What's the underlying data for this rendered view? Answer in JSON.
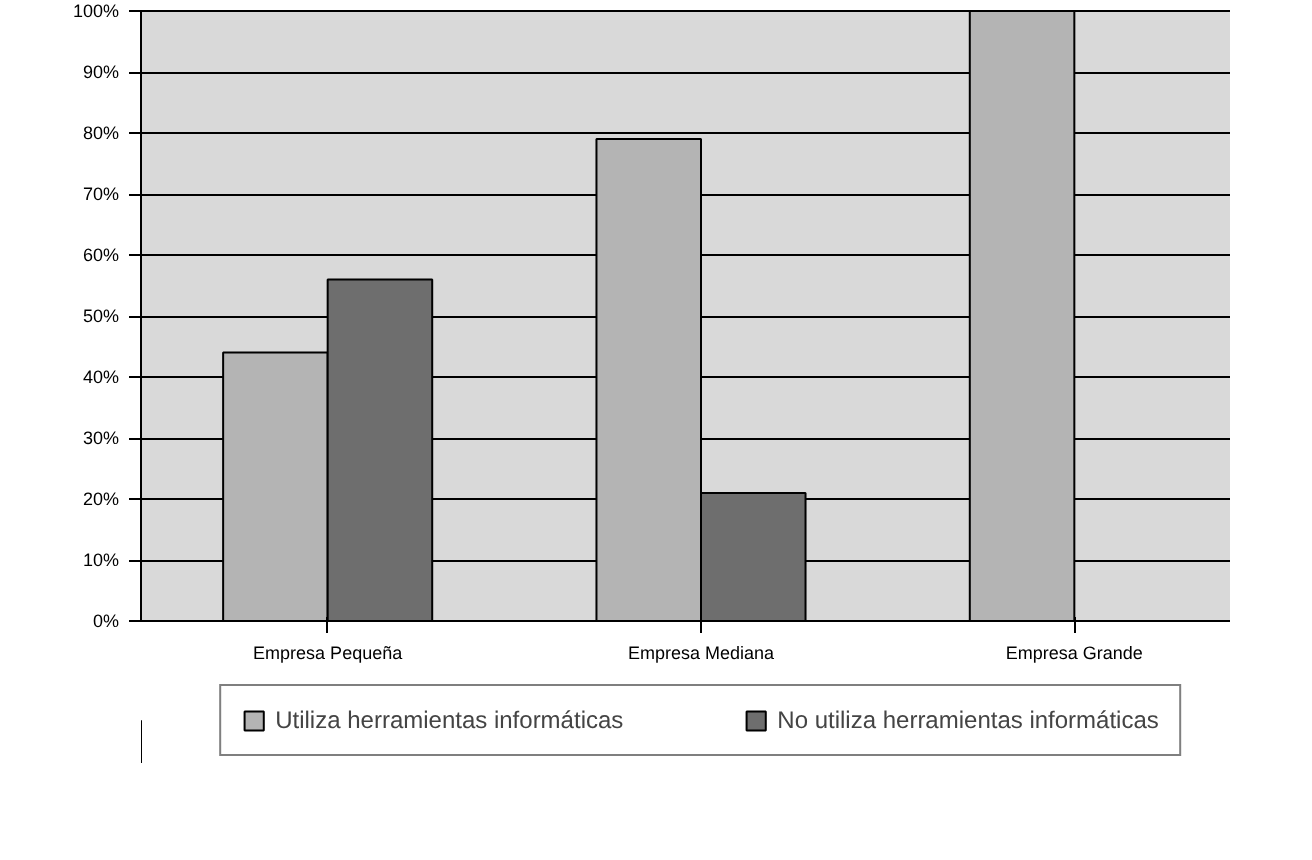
{
  "chart_data": {
    "type": "bar",
    "categories": [
      "Empresa Pequeña",
      "Empresa Mediana",
      "Empresa Grande"
    ],
    "series": [
      {
        "name": "Utiliza herramientas informáticas",
        "color": "#b4b4b4",
        "values": [
          44,
          79,
          100
        ]
      },
      {
        "name": "No utiliza herramientas informáticas",
        "color": "#6e6e6e",
        "values": [
          56,
          21,
          0
        ]
      }
    ],
    "ylim": [
      0,
      100
    ],
    "yticks": [
      {
        "value": 0,
        "label": "0%"
      },
      {
        "value": 10,
        "label": "10%"
      },
      {
        "value": 20,
        "label": "20%"
      },
      {
        "value": 30,
        "label": "30%"
      },
      {
        "value": 40,
        "label": "40%"
      },
      {
        "value": 50,
        "label": "50%"
      },
      {
        "value": 60,
        "label": "60%"
      },
      {
        "value": 70,
        "label": "70%"
      },
      {
        "value": 80,
        "label": "80%"
      },
      {
        "value": 90,
        "label": "90%"
      },
      {
        "value": 100,
        "label": "100%"
      }
    ],
    "grid": "y",
    "legend": "bottom"
  }
}
